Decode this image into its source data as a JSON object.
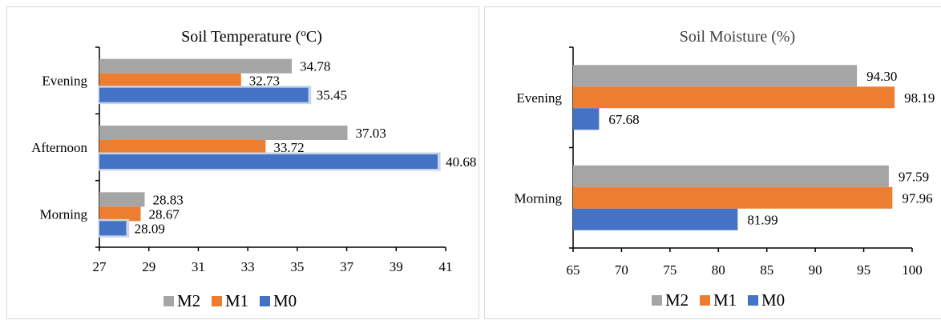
{
  "colors": {
    "M2": "#a5a5a5",
    "M1": "#ed7d31",
    "M0": "#4472c4",
    "axis": "#000000",
    "text": "#404040",
    "halo": "#c9d3e8"
  },
  "chart_data": [
    {
      "type": "bar",
      "orientation": "horizontal",
      "title": "Soil Temperature (",
      "title_sup": "o",
      "title_tail": "C)",
      "categories": [
        "Morning",
        "Afternoon",
        "Evening"
      ],
      "series": [
        {
          "name": "M2",
          "values": [
            28.83,
            37.03,
            34.78
          ],
          "labels": [
            "28.83",
            "37.03",
            "34.78"
          ]
        },
        {
          "name": "M1",
          "values": [
            28.67,
            33.72,
            32.73
          ],
          "labels": [
            "28.67",
            "33.72",
            "32.73"
          ]
        },
        {
          "name": "M0",
          "values": [
            28.09,
            40.68,
            35.45
          ],
          "labels": [
            "28.09",
            "40.68",
            "35.45"
          ]
        }
      ],
      "xlim": [
        27,
        41
      ],
      "xticks": [
        "27",
        "29",
        "31",
        "33",
        "35",
        "37",
        "39",
        "41"
      ],
      "legend": [
        "M2",
        "M1",
        "M0"
      ],
      "legend_position": "bottom",
      "grid": false
    },
    {
      "type": "bar",
      "orientation": "horizontal",
      "title": "Soil Moisture (%)",
      "categories": [
        "Morning",
        "Evening"
      ],
      "series": [
        {
          "name": "M2",
          "values": [
            97.59,
            94.3
          ],
          "labels": [
            "97.59",
            "94.30"
          ]
        },
        {
          "name": "M1",
          "values": [
            97.96,
            98.19
          ],
          "labels": [
            "97.96",
            "98.19"
          ]
        },
        {
          "name": "M0",
          "values": [
            81.99,
            67.68
          ],
          "labels": [
            "81.99",
            "67.68"
          ]
        }
      ],
      "xlim": [
        65,
        100
      ],
      "xticks": [
        "65",
        "70",
        "75",
        "80",
        "85",
        "90",
        "95",
        "100"
      ],
      "legend": [
        "M2",
        "M1",
        "M0"
      ],
      "legend_position": "bottom",
      "grid": false
    }
  ]
}
